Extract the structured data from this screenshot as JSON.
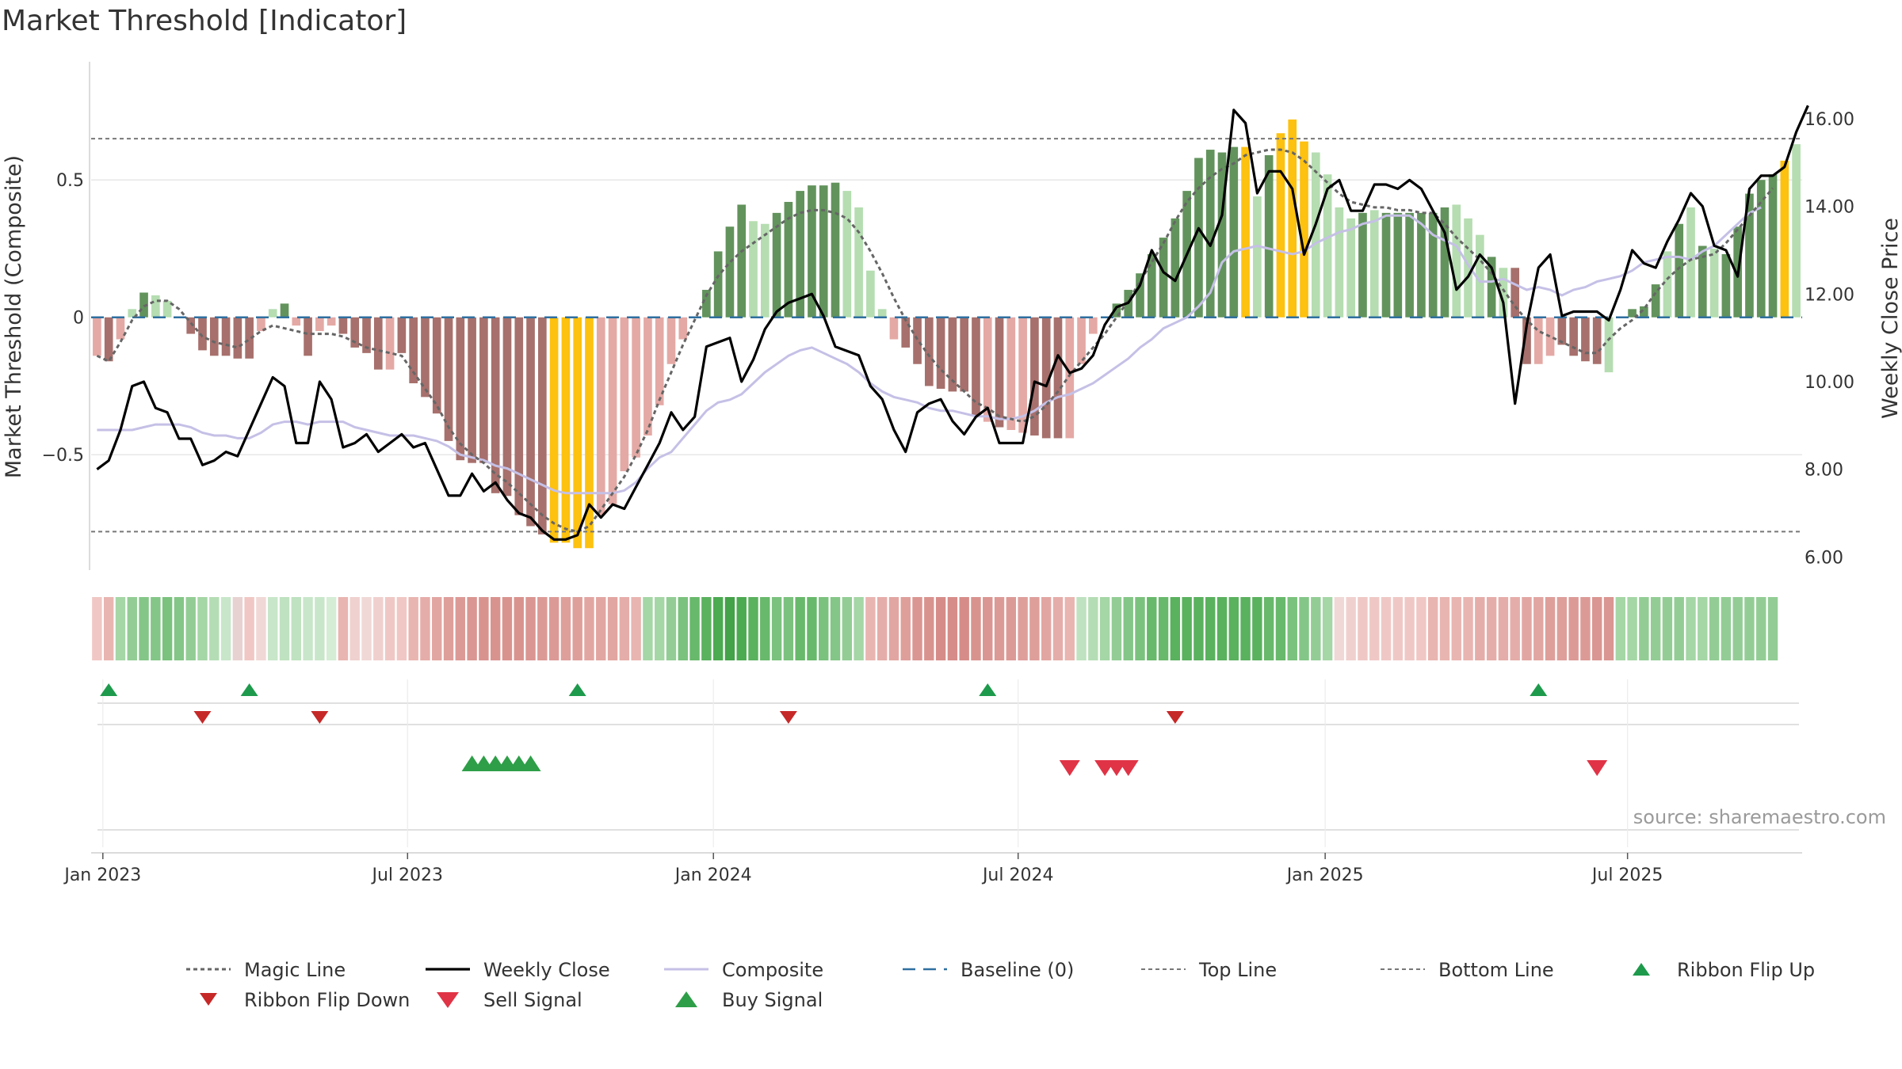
{
  "chart_data": {
    "type": "bar",
    "title": "Market Threshold [Indicator]",
    "ylabel_left": "Market Threshold (Composite)",
    "ylabel_right": "Weekly Close Price",
    "source": "source: sharemaestro.com",
    "x_start": "2022-12-26",
    "x_range": [
      "2022-12-26",
      "2025-09-22"
    ],
    "ylim_left": [
      -0.92,
      0.93
    ],
    "ylim_right": [
      5.7,
      17.3
    ],
    "left_ticks": [
      {
        "value": 0.5,
        "label": "0.5"
      },
      {
        "value": 0,
        "label": "0"
      },
      {
        "value": -0.5,
        "label": "−0.5"
      }
    ],
    "right_ticks": [
      {
        "value": 16,
        "label": "16.00"
      },
      {
        "value": 14,
        "label": "14.00"
      },
      {
        "value": 12,
        "label": "12.00"
      },
      {
        "value": 10,
        "label": "10.00"
      },
      {
        "value": 8,
        "label": "8.00"
      },
      {
        "value": 6,
        "label": "6.00"
      }
    ],
    "x_ticks": [
      {
        "week": 0.5,
        "label": "Jan 2023"
      },
      {
        "week": 26.5,
        "label": "Jul 2023"
      },
      {
        "week": 52.6,
        "label": "Jan 2024"
      },
      {
        "week": 78.6,
        "label": "Jul 2024"
      },
      {
        "week": 104.8,
        "label": "Jan 2025"
      },
      {
        "week": 130.6,
        "label": "Jul 2025"
      }
    ],
    "top_line": 0.65,
    "bottom_line": -0.78,
    "baseline": 0,
    "composite_bars": [
      -0.14,
      -0.16,
      -0.08,
      0.03,
      0.09,
      0.08,
      0.06,
      0.0,
      -0.06,
      -0.12,
      -0.14,
      -0.14,
      -0.15,
      -0.15,
      -0.05,
      0.03,
      0.05,
      -0.03,
      -0.14,
      -0.05,
      -0.03,
      -0.06,
      -0.11,
      -0.13,
      -0.19,
      -0.19,
      -0.13,
      -0.24,
      -0.29,
      -0.35,
      -0.45,
      -0.52,
      -0.53,
      -0.53,
      -0.64,
      -0.65,
      -0.72,
      -0.76,
      -0.79,
      -0.82,
      -0.82,
      -0.84,
      -0.84,
      -0.72,
      -0.68,
      -0.56,
      -0.51,
      -0.43,
      -0.32,
      -0.17,
      -0.08,
      0.0,
      0.1,
      0.24,
      0.33,
      0.41,
      0.35,
      0.34,
      0.38,
      0.42,
      0.46,
      0.48,
      0.48,
      0.49,
      0.46,
      0.4,
      0.17,
      0.03,
      -0.08,
      -0.11,
      -0.17,
      -0.25,
      -0.26,
      -0.27,
      -0.27,
      -0.36,
      -0.38,
      -0.4,
      -0.41,
      -0.42,
      -0.43,
      -0.44,
      -0.44,
      -0.44,
      -0.17,
      -0.06,
      0.0,
      0.05,
      0.1,
      0.16,
      0.23,
      0.29,
      0.36,
      0.46,
      0.58,
      0.61,
      0.6,
      0.62,
      0.62,
      0.44,
      0.59,
      0.67,
      0.72,
      0.64,
      0.6,
      0.52,
      0.4,
      0.36,
      0.38,
      0.39,
      0.38,
      0.38,
      0.38,
      0.38,
      0.38,
      0.4,
      0.41,
      0.36,
      0.3,
      0.22,
      0.18,
      0.18,
      -0.17,
      -0.17,
      -0.14,
      -0.1,
      -0.14,
      -0.16,
      -0.17,
      -0.2,
      0.0,
      0.03,
      0.04,
      0.12,
      0.24,
      0.34,
      0.4,
      0.26,
      0.25,
      0.23,
      0.33,
      0.45,
      0.5,
      0.52,
      0.57,
      0.63
    ],
    "bar_colors": [
      "#e4a9a5",
      "#a7706c",
      "#e4a9a5",
      "#b5ddb1",
      "#62935c",
      "#b5ddb1",
      "#b5ddb1",
      "#b5ddb1",
      "#a7706c",
      "#a7706c",
      "#a7706c",
      "#a7706c",
      "#a7706c",
      "#a7706c",
      "#e4a9a5",
      "#b5ddb1",
      "#62935c",
      "#e4a9a5",
      "#a7706c",
      "#e4a9a5",
      "#e4a9a5",
      "#a7706c",
      "#a7706c",
      "#a7706c",
      "#a7706c",
      "#e4a9a5",
      "#a7706c",
      "#a7706c",
      "#a7706c",
      "#a7706c",
      "#a7706c",
      "#a7706c",
      "#a7706c",
      "#a7706c",
      "#a7706c",
      "#a7706c",
      "#a7706c",
      "#a7706c",
      "#a7706c",
      "#fdc10f",
      "#fdc10f",
      "#fdc10f",
      "#fdc10f",
      "#e4a9a5",
      "#e4a9a5",
      "#e4a9a5",
      "#e4a9a5",
      "#e4a9a5",
      "#e4a9a5",
      "#e4a9a5",
      "#e4a9a5",
      "#b5ddb1",
      "#62935c",
      "#62935c",
      "#62935c",
      "#62935c",
      "#b5ddb1",
      "#b5ddb1",
      "#62935c",
      "#62935c",
      "#62935c",
      "#62935c",
      "#62935c",
      "#62935c",
      "#b5ddb1",
      "#b5ddb1",
      "#b5ddb1",
      "#b5ddb1",
      "#e4a9a5",
      "#a7706c",
      "#a7706c",
      "#a7706c",
      "#a7706c",
      "#a7706c",
      "#a7706c",
      "#a7706c",
      "#e4a9a5",
      "#a7706c",
      "#e4a9a5",
      "#e4a9a5",
      "#a7706c",
      "#a7706c",
      "#a7706c",
      "#e4a9a5",
      "#e4a9a5",
      "#e4a9a5",
      "#b5ddb1",
      "#62935c",
      "#62935c",
      "#62935c",
      "#62935c",
      "#62935c",
      "#62935c",
      "#62935c",
      "#62935c",
      "#62935c",
      "#62935c",
      "#62935c",
      "#fdc10f",
      "#b5ddb1",
      "#62935c",
      "#fdc10f",
      "#fdc10f",
      "#fdc10f",
      "#b5ddb1",
      "#b5ddb1",
      "#b5ddb1",
      "#b5ddb1",
      "#62935c",
      "#b5ddb1",
      "#62935c",
      "#62935c",
      "#62935c",
      "#62935c",
      "#62935c",
      "#62935c",
      "#b5ddb1",
      "#b5ddb1",
      "#b5ddb1",
      "#62935c",
      "#b5ddb1",
      "#a7706c",
      "#a7706c",
      "#e4a9a5",
      "#e4a9a5",
      "#a7706c",
      "#a7706c",
      "#a7706c",
      "#a7706c",
      "#b5ddb1",
      "#62935c",
      "#62935c",
      "#62935c",
      "#62935c",
      "#b5ddb1",
      "#62935c",
      "#b5ddb1",
      "#62935c",
      "#b5ddb1",
      "#62935c",
      "#62935c",
      "#62935c",
      "#62935c",
      "#62935c",
      "#fdc10f"
    ],
    "weekly_close": [
      8.0,
      8.2,
      8.9,
      9.9,
      10.0,
      9.4,
      9.3,
      8.7,
      8.7,
      8.1,
      8.2,
      8.4,
      8.3,
      8.9,
      9.5,
      10.1,
      9.9,
      8.6,
      8.6,
      10.0,
      9.6,
      8.5,
      8.6,
      8.8,
      8.4,
      8.6,
      8.8,
      8.5,
      8.6,
      8.0,
      7.4,
      7.4,
      7.9,
      7.5,
      7.7,
      7.3,
      7.0,
      6.9,
      6.6,
      6.4,
      6.4,
      6.5,
      7.2,
      6.9,
      7.2,
      7.1,
      7.6,
      8.1,
      8.6,
      9.3,
      8.9,
      9.2,
      10.8,
      10.9,
      11.0,
      10.0,
      10.5,
      11.2,
      11.6,
      11.8,
      11.9,
      12.0,
      11.5,
      10.8,
      10.7,
      10.6,
      9.9,
      9.6,
      8.9,
      8.4,
      9.3,
      9.5,
      9.6,
      9.1,
      8.8,
      9.2,
      9.4,
      8.6,
      8.6,
      8.6,
      10.0,
      9.9,
      10.6,
      10.2,
      10.3,
      10.6,
      11.3,
      11.7,
      11.8,
      12.2,
      13.0,
      12.5,
      12.3,
      12.9,
      13.5,
      13.1,
      13.8,
      16.2,
      15.9,
      14.3,
      14.8,
      14.8,
      14.4,
      12.9,
      13.6,
      14.4,
      14.6,
      13.9,
      13.9,
      14.5,
      14.5,
      14.4,
      14.6,
      14.4,
      13.9,
      13.4,
      12.1,
      12.4,
      12.9,
      12.6,
      11.8,
      9.5,
      11.3,
      12.6,
      12.9,
      11.5,
      11.6,
      11.6,
      11.6,
      11.4,
      12.1,
      13.0,
      12.7,
      12.6,
      13.2,
      13.7,
      14.3,
      14.0,
      13.1,
      13.0,
      12.4,
      14.4,
      14.7,
      14.7,
      14.9,
      15.7,
      16.3
    ],
    "composite_line": [
      -0.41,
      -0.41,
      -0.41,
      -0.41,
      -0.4,
      -0.39,
      -0.39,
      -0.39,
      -0.4,
      -0.42,
      -0.43,
      -0.43,
      -0.44,
      -0.44,
      -0.42,
      -0.39,
      -0.38,
      -0.38,
      -0.39,
      -0.38,
      -0.38,
      -0.38,
      -0.4,
      -0.41,
      -0.42,
      -0.43,
      -0.43,
      -0.43,
      -0.44,
      -0.45,
      -0.47,
      -0.5,
      -0.51,
      -0.52,
      -0.54,
      -0.55,
      -0.57,
      -0.59,
      -0.61,
      -0.63,
      -0.64,
      -0.64,
      -0.64,
      -0.64,
      -0.64,
      -0.63,
      -0.6,
      -0.55,
      -0.51,
      -0.49,
      -0.44,
      -0.39,
      -0.34,
      -0.31,
      -0.3,
      -0.28,
      -0.24,
      -0.2,
      -0.17,
      -0.14,
      -0.12,
      -0.11,
      -0.13,
      -0.15,
      -0.17,
      -0.2,
      -0.24,
      -0.27,
      -0.29,
      -0.3,
      -0.31,
      -0.33,
      -0.34,
      -0.34,
      -0.35,
      -0.36,
      -0.36,
      -0.37,
      -0.37,
      -0.36,
      -0.34,
      -0.31,
      -0.29,
      -0.28,
      -0.26,
      -0.24,
      -0.21,
      -0.18,
      -0.15,
      -0.11,
      -0.08,
      -0.04,
      -0.02,
      0.0,
      0.04,
      0.09,
      0.2,
      0.24,
      0.25,
      0.26,
      0.25,
      0.24,
      0.23,
      0.24,
      0.27,
      0.29,
      0.31,
      0.32,
      0.34,
      0.35,
      0.37,
      0.37,
      0.37,
      0.34,
      0.3,
      0.28,
      0.26,
      0.19,
      0.13,
      0.13,
      0.14,
      0.12,
      0.1,
      0.11,
      0.1,
      0.08,
      0.1,
      0.11,
      0.13,
      0.14,
      0.15,
      0.17,
      0.2,
      0.21,
      0.22,
      0.22,
      0.21,
      0.24,
      0.26,
      0.3,
      0.34,
      0.38,
      0.4
    ],
    "magic_line": [
      -0.14,
      -0.16,
      -0.09,
      -0.01,
      0.04,
      0.06,
      0.06,
      0.03,
      -0.02,
      -0.07,
      -0.09,
      -0.1,
      -0.11,
      -0.08,
      -0.05,
      -0.03,
      -0.04,
      -0.05,
      -0.06,
      -0.06,
      -0.06,
      -0.07,
      -0.09,
      -0.11,
      -0.12,
      -0.13,
      -0.14,
      -0.2,
      -0.26,
      -0.32,
      -0.4,
      -0.46,
      -0.5,
      -0.53,
      -0.57,
      -0.6,
      -0.64,
      -0.68,
      -0.72,
      -0.75,
      -0.77,
      -0.78,
      -0.76,
      -0.7,
      -0.64,
      -0.58,
      -0.5,
      -0.41,
      -0.3,
      -0.2,
      -0.1,
      -0.01,
      0.08,
      0.15,
      0.2,
      0.24,
      0.27,
      0.3,
      0.33,
      0.36,
      0.38,
      0.39,
      0.39,
      0.38,
      0.36,
      0.31,
      0.24,
      0.16,
      0.07,
      -0.01,
      -0.08,
      -0.14,
      -0.19,
      -0.23,
      -0.27,
      -0.31,
      -0.33,
      -0.36,
      -0.37,
      -0.38,
      -0.36,
      -0.32,
      -0.27,
      -0.21,
      -0.16,
      -0.11,
      -0.06,
      0.0,
      0.06,
      0.13,
      0.2,
      0.27,
      0.35,
      0.42,
      0.47,
      0.51,
      0.54,
      0.56,
      0.59,
      0.6,
      0.61,
      0.61,
      0.6,
      0.57,
      0.53,
      0.49,
      0.45,
      0.42,
      0.41,
      0.4,
      0.4,
      0.39,
      0.39,
      0.38,
      0.38,
      0.34,
      0.29,
      0.25,
      0.21,
      0.16,
      0.1,
      0.04,
      -0.01,
      -0.05,
      -0.07,
      -0.09,
      -0.11,
      -0.13,
      -0.13,
      -0.08,
      -0.04,
      -0.01,
      0.03,
      0.09,
      0.14,
      0.18,
      0.21,
      0.22,
      0.23,
      0.27,
      0.32,
      0.37,
      0.42,
      0.47
    ],
    "ribbon_colors": [
      "#f0c7c4",
      "#e9b5b1",
      "#a5d6a6",
      "#93cd95",
      "#84c687",
      "#84c687",
      "#7bc27e",
      "#84c687",
      "#93cd95",
      "#a5d6a6",
      "#b5ddb5",
      "#c8e6c9",
      "#e7d2d1",
      "#f0c7c4",
      "#f0d8d6",
      "#c8e6c9",
      "#bfe2c0",
      "#bfe2c0",
      "#c8e6c9",
      "#c8e6c9",
      "#d5ecd5",
      "#e9b5b1",
      "#efd1cf",
      "#f0d8d6",
      "#f0d0ce",
      "#efc8c5",
      "#f0c7c4",
      "#e9b5b1",
      "#e5ada9",
      "#e2a6a2",
      "#de9f9b",
      "#dc9a96",
      "#da9692",
      "#d9938f",
      "#d9938f",
      "#d9938f",
      "#d9938f",
      "#da9692",
      "#dc9a96",
      "#dc9a96",
      "#de9f9b",
      "#de9f9b",
      "#e2a6a2",
      "#e2a6a2",
      "#e2a6a2",
      "#e5ada9",
      "#e9b5b1",
      "#a5d6a6",
      "#a5d6a6",
      "#93cd95",
      "#7bc27e",
      "#68b96b",
      "#5ab15e",
      "#4caa50",
      "#44a248",
      "#4caa50",
      "#5ab15e",
      "#68b96b",
      "#7bc27e",
      "#7bc27e",
      "#68b96b",
      "#68b96b",
      "#7bc27e",
      "#84c687",
      "#93cd95",
      "#a5d6a6",
      "#e9b5b1",
      "#e5ada9",
      "#e2a6a2",
      "#de9f9b",
      "#da9692",
      "#d9938f",
      "#d68d89",
      "#d68d89",
      "#d68d89",
      "#d9938f",
      "#da9692",
      "#dc9a96",
      "#dc9a96",
      "#de9f9b",
      "#de9f9b",
      "#e2a6a2",
      "#e5ada9",
      "#e9b5b1",
      "#bfe2c0",
      "#b5ddb5",
      "#a5d6a6",
      "#93cd95",
      "#84c687",
      "#7bc27e",
      "#68b96b",
      "#68b96b",
      "#5ab15e",
      "#5ab15e",
      "#5ab15e",
      "#5ab15e",
      "#5ab15e",
      "#5ab15e",
      "#5ab15e",
      "#5ab15e",
      "#68b96b",
      "#68b96b",
      "#7bc27e",
      "#84c687",
      "#93cd95",
      "#a5d6a6",
      "#f0d8d6",
      "#f0d0ce",
      "#efc8c5",
      "#efc8c5",
      "#efc8c5",
      "#efc8c5",
      "#efc8c5",
      "#f0c7c4",
      "#e9b5b1",
      "#e9b5b1",
      "#e9b5b1",
      "#e9b5b1",
      "#e5ada9",
      "#e5ada9",
      "#e5ada9",
      "#e5ada9",
      "#e2a6a2",
      "#e2a6a2",
      "#de9f9b",
      "#de9f9b",
      "#dc9a96",
      "#dc9a96",
      "#da9692",
      "#da9692",
      "#a5d6a6",
      "#a5d6a6",
      "#93cd95",
      "#93cd95",
      "#93cd95",
      "#93cd95",
      "#a5d6a6",
      "#a5d6a6",
      "#93cd95",
      "#93cd95",
      "#93cd95",
      "#93cd95",
      "#93cd95",
      "#93cd95"
    ],
    "ribbon_flip_up_weeks": [
      1,
      13,
      41,
      76,
      123
    ],
    "ribbon_flip_down_weeks": [
      9,
      19,
      59,
      92
    ],
    "buy_signal_weeks": [
      32,
      33,
      34,
      35,
      36,
      37
    ],
    "sell_signal_weeks": [
      83,
      86,
      87,
      88,
      128
    ],
    "colors": {
      "bar_strong_up": "#62935c",
      "bar_weak_up": "#b5ddb1",
      "bar_strong_down": "#a7706c",
      "bar_weak_down": "#e4a9a5",
      "bar_extreme": "#fdc10f",
      "weekly_close": "#000000",
      "composite": "#c5c0e6",
      "magic_line": "#666666",
      "baseline": "#2f6f9f",
      "threshold_lines": "#777777",
      "ribbon_flip_up": "#1e9a4c",
      "ribbon_flip_down": "#c62828",
      "buy_signal": "#2e9e48",
      "sell_signal": "#e03446"
    },
    "legend": [
      {
        "key": "magic",
        "label": "Magic Line"
      },
      {
        "key": "close",
        "label": "Weekly Close"
      },
      {
        "key": "composite",
        "label": "Composite"
      },
      {
        "key": "baseline",
        "label": "Baseline (0)"
      },
      {
        "key": "top",
        "label": "Top Line"
      },
      {
        "key": "bottom",
        "label": "Bottom Line"
      },
      {
        "key": "flip_up",
        "label": "Ribbon Flip Up"
      },
      {
        "key": "flip_down",
        "label": "Ribbon Flip Down"
      },
      {
        "key": "sell",
        "label": "Sell Signal"
      },
      {
        "key": "buy",
        "label": "Buy Signal"
      }
    ]
  }
}
